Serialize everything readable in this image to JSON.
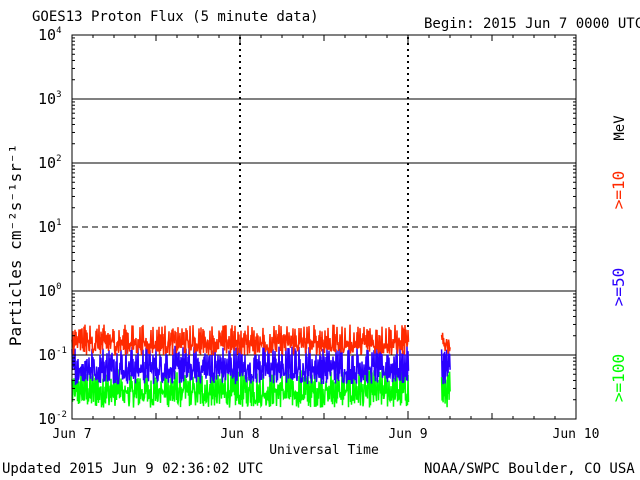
{
  "chart_data": {
    "type": "line",
    "title": "GOES13 Proton Flux (5 minute data)",
    "begin_label": "Begin: 2015 Jun 7 0000 UTC",
    "xlabel": "Universal Time",
    "ylabel": "Particles cm⁻²s⁻¹sr⁻¹",
    "yscale": "log",
    "ylim": [
      0.01,
      10000
    ],
    "y_ticks": [
      {
        "base": "10",
        "exp": "4",
        "value": 10000
      },
      {
        "base": "10",
        "exp": "3",
        "value": 1000
      },
      {
        "base": "10",
        "exp": "2",
        "value": 100
      },
      {
        "base": "10",
        "exp": "1",
        "value": 10
      },
      {
        "base": "10",
        "exp": "0",
        "value": 1
      },
      {
        "base": "10",
        "exp": "-1",
        "value": 0.1
      },
      {
        "base": "10",
        "exp": "-2",
        "value": 0.01
      }
    ],
    "x_ticks": [
      "Jun 7",
      "Jun 8",
      "Jun 9",
      "Jun 10"
    ],
    "xlim_days": [
      0,
      3
    ],
    "grid": "solid gridlines at 10^3, 10^2, 10^0, 10^-1; dashed line at 10^1; dashed day separators above data",
    "units_label": "MeV",
    "series": [
      {
        "name": ">=10",
        "color": "#ff2a00",
        "level_low": 0.1,
        "level_high": 0.3,
        "segments_days": [
          [
            0,
            2.0
          ],
          [
            2.2,
            2.25
          ]
        ]
      },
      {
        "name": ">=50",
        "color": "#2a00ff",
        "level_low": 0.035,
        "level_high": 0.14,
        "segments_days": [
          [
            0,
            2.0
          ],
          [
            2.2,
            2.25
          ]
        ]
      },
      {
        "name": ">=100",
        "color": "#00ff00",
        "level_low": 0.015,
        "level_high": 0.06,
        "segments_days": [
          [
            0,
            2.0
          ],
          [
            2.2,
            2.25
          ]
        ]
      }
    ]
  },
  "footer": {
    "updated": "Updated 2015 Jun  9 02:36:02 UTC",
    "credit": "NOAA/SWPC Boulder, CO USA"
  }
}
